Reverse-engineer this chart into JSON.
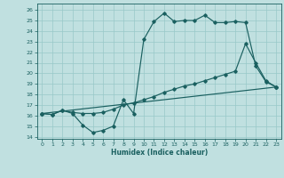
{
  "title": "",
  "xlabel": "Humidex (Indice chaleur)",
  "bg_color": "#c0e0e0",
  "grid_color": "#98c8c8",
  "line_color": "#1a6060",
  "xlim": [
    -0.5,
    23.5
  ],
  "ylim": [
    13.8,
    26.6
  ],
  "yticks": [
    14,
    15,
    16,
    17,
    18,
    19,
    20,
    21,
    22,
    23,
    24,
    25,
    26
  ],
  "xticks": [
    0,
    1,
    2,
    3,
    4,
    5,
    6,
    7,
    8,
    9,
    10,
    11,
    12,
    13,
    14,
    15,
    16,
    17,
    18,
    19,
    20,
    21,
    22,
    23
  ],
  "line1_x": [
    0,
    1,
    2,
    3,
    4,
    5,
    6,
    7,
    8,
    9,
    10,
    11,
    12,
    13,
    14,
    15,
    16,
    17,
    18,
    19,
    20,
    21,
    22,
    23
  ],
  "line1_y": [
    16.2,
    16.1,
    16.5,
    16.2,
    15.1,
    14.4,
    14.6,
    15.0,
    17.5,
    16.2,
    23.2,
    24.9,
    25.7,
    24.9,
    25.0,
    25.0,
    25.5,
    24.8,
    24.8,
    24.9,
    24.8,
    20.7,
    19.2,
    18.7
  ],
  "line2_x": [
    0,
    1,
    2,
    3,
    4,
    5,
    6,
    7,
    8,
    9,
    10,
    11,
    12,
    13,
    14,
    15,
    16,
    17,
    18,
    19,
    20,
    21,
    22,
    23
  ],
  "line2_y": [
    16.2,
    16.1,
    16.5,
    16.3,
    16.2,
    16.2,
    16.3,
    16.6,
    17.0,
    17.2,
    17.5,
    17.8,
    18.2,
    18.5,
    18.8,
    19.0,
    19.3,
    19.6,
    19.9,
    20.2,
    22.8,
    21.0,
    19.3,
    18.7
  ],
  "line3_x": [
    0,
    23
  ],
  "line3_y": [
    16.2,
    18.7
  ]
}
